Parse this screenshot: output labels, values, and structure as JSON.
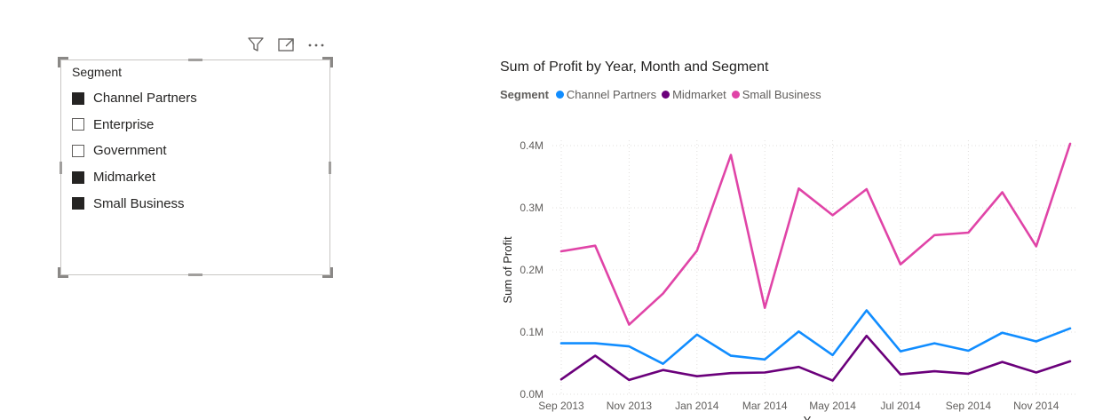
{
  "toolbar": {
    "icons": [
      "filter-icon",
      "focus-mode-icon",
      "more-options-icon"
    ]
  },
  "slicer": {
    "title": "Segment",
    "items": [
      {
        "label": "Channel Partners",
        "checked": true
      },
      {
        "label": "Enterprise",
        "checked": false
      },
      {
        "label": "Government",
        "checked": false
      },
      {
        "label": "Midmarket",
        "checked": true
      },
      {
        "label": "Small Business",
        "checked": true
      }
    ]
  },
  "legend": {
    "title": "Segment",
    "entries": [
      {
        "name": "Channel Partners",
        "color": "#118DFF"
      },
      {
        "name": "Midmarket",
        "color": "#6B007B"
      },
      {
        "name": "Small Business",
        "color": "#E044A7"
      }
    ]
  },
  "chart_data": {
    "type": "line",
    "title": "Sum of Profit by Year, Month and Segment",
    "xlabel": "Y",
    "ylabel": "Sum of Profit",
    "x": [
      "Sep 2013",
      "Oct 2013",
      "Nov 2013",
      "Dec 2013",
      "Jan 2014",
      "Feb 2014",
      "Mar 2014",
      "Apr 2014",
      "May 2014",
      "Jun 2014",
      "Jul 2014",
      "Aug 2014",
      "Sep 2014",
      "Oct 2014",
      "Nov 2014",
      "Dec 2014"
    ],
    "x_tick_labels": [
      "Sep 2013",
      "Nov 2013",
      "Jan 2014",
      "Mar 2014",
      "May 2014",
      "Jul 2014",
      "Sep 2014",
      "Nov 2014"
    ],
    "y_ticks": [
      0,
      100000,
      200000,
      300000,
      400000
    ],
    "y_tick_labels": [
      "0.0M",
      "0.1M",
      "0.2M",
      "0.3M",
      "0.4M"
    ],
    "ylim": [
      0,
      400000
    ],
    "grid": true,
    "legend_position": "top-left",
    "series": [
      {
        "name": "Channel Partners",
        "color": "#118DFF",
        "values": [
          82000,
          82000,
          77000,
          49000,
          96000,
          62000,
          56000,
          101000,
          63000,
          135000,
          69000,
          82000,
          70000,
          99000,
          85000,
          106000
        ]
      },
      {
        "name": "Midmarket",
        "color": "#6B007B",
        "values": [
          24000,
          62000,
          23000,
          39000,
          29000,
          34000,
          35000,
          44000,
          22000,
          94000,
          32000,
          37000,
          33000,
          52000,
          35000,
          53000
        ]
      },
      {
        "name": "Small Business",
        "color": "#E044A7",
        "values": [
          230000,
          239000,
          112000,
          162000,
          231000,
          385000,
          139000,
          331000,
          288000,
          330000,
          209000,
          256000,
          260000,
          325000,
          238000,
          403000
        ]
      }
    ]
  }
}
